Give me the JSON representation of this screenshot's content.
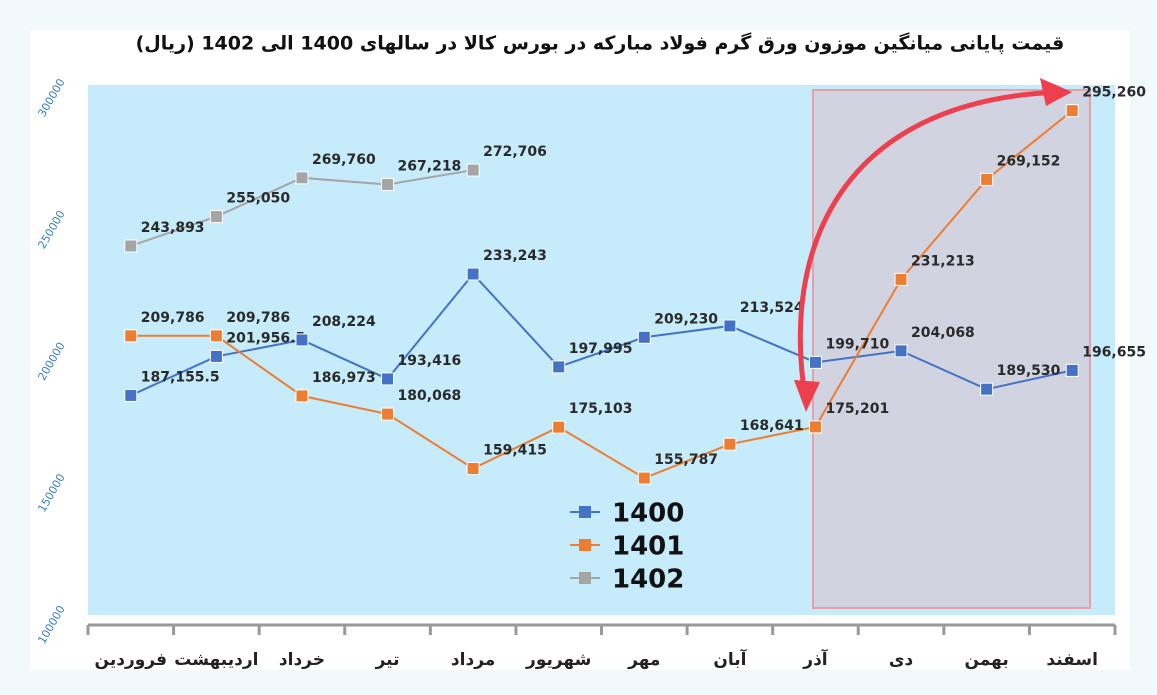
{
  "chart_data": {
    "type": "line",
    "title": "قیمت پایانی میانگین موزون ورق گرم فولاد مبارکه در بورس کالا در سالهای 1400 الی 1402 (ریال)",
    "categories": [
      "فروردین",
      "اردیبهشت",
      "خرداد",
      "تیر",
      "مرداد",
      "شهریور",
      "مهر",
      "آبان",
      "آذر",
      "دی",
      "بهمن",
      "اسفند"
    ],
    "ylim": [
      100000,
      305000
    ],
    "yticks": [
      100000,
      150000,
      200000,
      250000,
      300000
    ],
    "grid": false,
    "legend": "center",
    "series": [
      {
        "name": "1400",
        "color": "#4472c4",
        "values": [
          187155.5,
          201956.5,
          208224,
          193416,
          233243,
          197995,
          209230,
          213524,
          199710,
          204068,
          189530,
          196655
        ],
        "value_labels": [
          "187,155.5",
          "201,956.5",
          "208,224",
          "193,416",
          "233,243",
          "197,995",
          "209,230",
          "213,524",
          "199,710",
          "204,068",
          "189,530",
          "196,655"
        ]
      },
      {
        "name": "1401",
        "color": "#ed7d31",
        "values": [
          209786,
          209786,
          186973,
          180068,
          159415,
          175103,
          155787,
          168641,
          175201,
          231213,
          269152,
          295260
        ],
        "value_labels": [
          "209,786",
          "209,786",
          "186,973",
          "180,068",
          "159,415",
          "175,103",
          "155,787",
          "168,641",
          "175,201",
          "231,213",
          "269,152",
          "295,260"
        ]
      },
      {
        "name": "1402",
        "color": "#a5a5a5",
        "values": [
          243893,
          255050,
          269760,
          267218,
          272706,
          null,
          null,
          null,
          null,
          null,
          null,
          null
        ],
        "value_labels": [
          "243,893",
          "255,050",
          "269,760",
          "267,218",
          "272,706",
          null,
          null,
          null,
          null,
          null,
          null,
          null
        ]
      }
    ]
  }
}
